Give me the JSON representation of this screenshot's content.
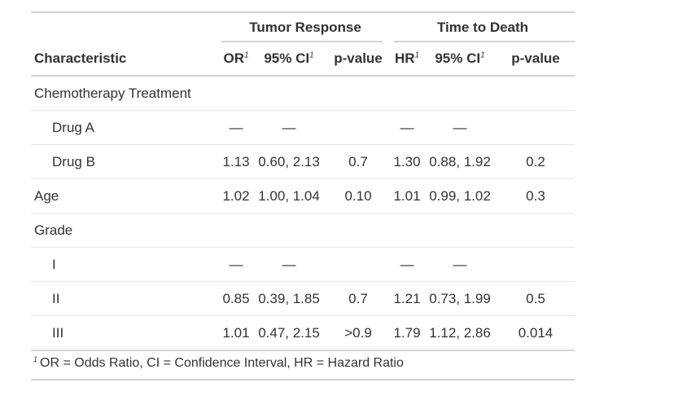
{
  "spanners": {
    "tumor": "Tumor Response",
    "death": "Time to Death"
  },
  "columns": {
    "characteristic": "Characteristic",
    "or": "OR",
    "ci1": "95% CI",
    "p1": "p-value",
    "hr": "HR",
    "ci2": "95% CI",
    "p2": "p-value",
    "footnote_mark": "1"
  },
  "rows": [
    {
      "label": "Chemotherapy Treatment",
      "or": "",
      "ci1": "",
      "p1": "",
      "hr": "",
      "ci2": "",
      "p2": ""
    },
    {
      "label": "Drug A",
      "or": "—",
      "ci1": "—",
      "p1": "",
      "hr": "—",
      "ci2": "—",
      "p2": ""
    },
    {
      "label": "Drug B",
      "or": "1.13",
      "ci1": "0.60, 2.13",
      "p1": "0.7",
      "hr": "1.30",
      "ci2": "0.88, 1.92",
      "p2": "0.2"
    },
    {
      "label": "Age",
      "or": "1.02",
      "ci1": "1.00, 1.04",
      "p1": "0.10",
      "hr": "1.01",
      "ci2": "0.99, 1.02",
      "p2": "0.3"
    },
    {
      "label": "Grade",
      "or": "",
      "ci1": "",
      "p1": "",
      "hr": "",
      "ci2": "",
      "p2": ""
    },
    {
      "label": "I",
      "or": "—",
      "ci1": "—",
      "p1": "",
      "hr": "—",
      "ci2": "—",
      "p2": ""
    },
    {
      "label": "II",
      "or": "0.85",
      "ci1": "0.39, 1.85",
      "p1": "0.7",
      "hr": "1.21",
      "ci2": "0.73, 1.99",
      "p2": "0.5"
    },
    {
      "label": "III",
      "or": "1.01",
      "ci1": "0.47, 2.15",
      "p1": ">0.9",
      "hr": "1.79",
      "ci2": "1.12, 2.86",
      "p2": "0.014"
    }
  ],
  "footnote": {
    "mark": "1",
    "text": "OR = Odds Ratio, CI = Confidence Interval, HR = Hazard Ratio"
  }
}
